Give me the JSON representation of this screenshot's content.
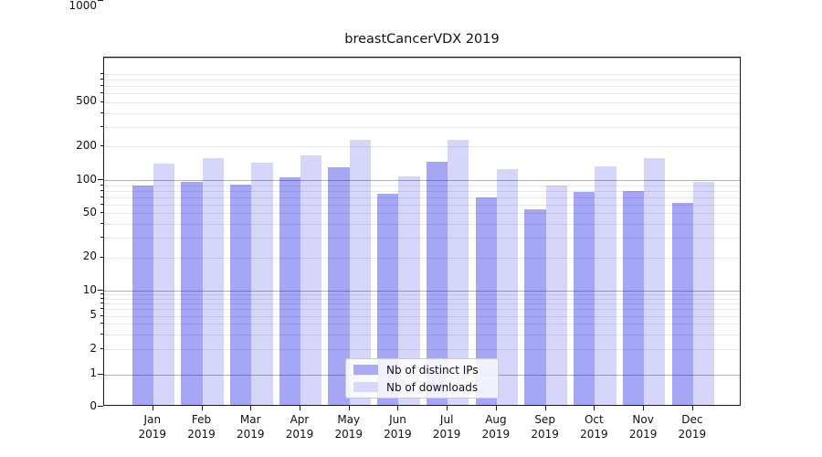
{
  "title": "breastCancerVDX 2019",
  "chart_data": {
    "type": "bar",
    "title": "breastCancerVDX 2019",
    "xlabel": "",
    "ylabel": "",
    "yscale": "symlog",
    "ylim": [
      0,
      1500
    ],
    "grid": "on",
    "legend_position": "lower center",
    "categories": [
      "Jan",
      "Feb",
      "Mar",
      "Apr",
      "May",
      "Jun",
      "Jul",
      "Aug",
      "Sep",
      "Oct",
      "Nov",
      "Dec"
    ],
    "year_label": "2019",
    "y_ticks": [
      1000,
      500,
      200,
      100,
      50,
      20,
      10,
      5,
      2,
      1,
      0
    ],
    "series": [
      {
        "name": "Nb of distinct IPs",
        "color": "rgba(0,0,228,0.35)",
        "legend_swatch_hex": "#abaaf7",
        "values": [
          89,
          96,
          91,
          106,
          131,
          75,
          146,
          69,
          54,
          78,
          79,
          62
        ]
      },
      {
        "name": "Nb of downloads",
        "color": "rgba(0,0,228,0.16)",
        "legend_swatch_hex": "#d8d8fa",
        "values": [
          140,
          157,
          143,
          166,
          230,
          108,
          230,
          125,
          90,
          133,
          156,
          96
        ]
      }
    ]
  }
}
